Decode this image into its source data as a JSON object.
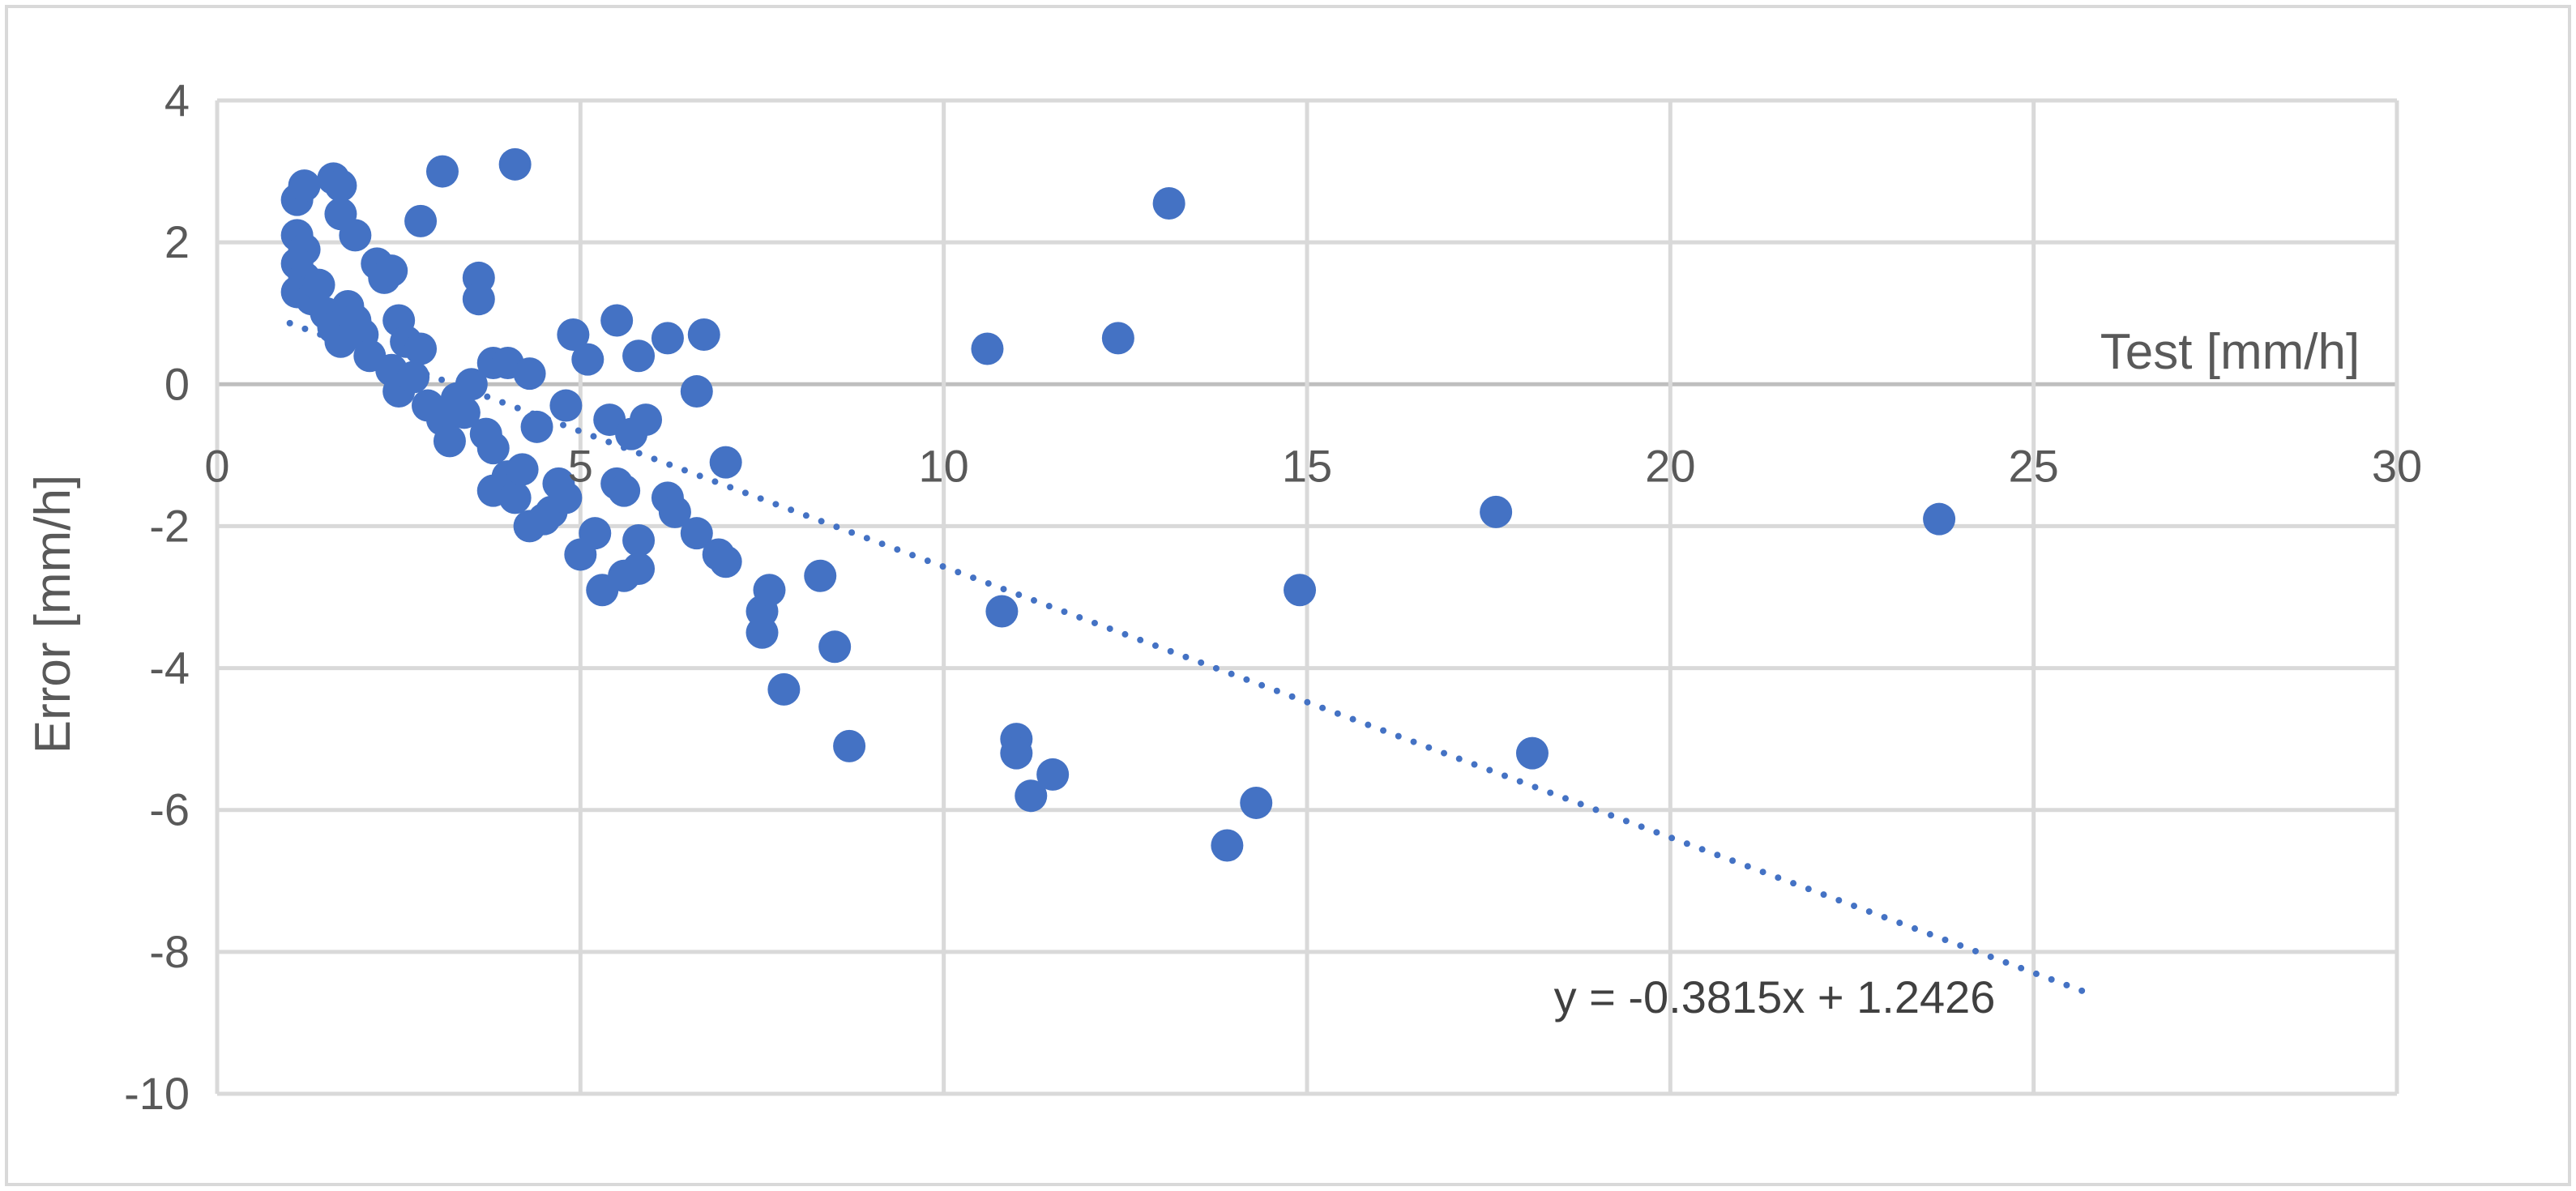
{
  "chart_data": {
    "type": "scatter",
    "xlabel": "Test [mm/h]",
    "ylabel": "Error [mm/h]",
    "xlim": [
      0,
      30
    ],
    "ylim": [
      -10,
      4
    ],
    "x_ticks": [
      0,
      5,
      10,
      15,
      20,
      25,
      30
    ],
    "y_ticks": [
      4,
      2,
      0,
      -2,
      -4,
      -6,
      -8,
      -10
    ],
    "grid": true,
    "legend": "none",
    "colors": {
      "points": "#4472c4",
      "trendline": "#4472c4",
      "grid": "#d9d9d9",
      "text": "#595959"
    },
    "trendline": {
      "equation": "y = -0.3815x + 1.2426",
      "slope": -0.3815,
      "intercept": 1.2426,
      "x_range": [
        1.0,
        25.7
      ]
    },
    "points": [
      {
        "x": 1.1,
        "y": 2.6
      },
      {
        "x": 1.2,
        "y": 2.8
      },
      {
        "x": 1.6,
        "y": 2.9
      },
      {
        "x": 1.7,
        "y": 2.8
      },
      {
        "x": 1.7,
        "y": 2.4
      },
      {
        "x": 1.9,
        "y": 2.1
      },
      {
        "x": 1.1,
        "y": 2.1
      },
      {
        "x": 1.2,
        "y": 1.9
      },
      {
        "x": 1.1,
        "y": 1.7
      },
      {
        "x": 1.2,
        "y": 1.5
      },
      {
        "x": 1.1,
        "y": 1.3
      },
      {
        "x": 1.3,
        "y": 1.2
      },
      {
        "x": 1.4,
        "y": 1.4
      },
      {
        "x": 1.5,
        "y": 1.0
      },
      {
        "x": 1.6,
        "y": 0.8
      },
      {
        "x": 1.7,
        "y": 0.6
      },
      {
        "x": 1.8,
        "y": 1.1
      },
      {
        "x": 1.9,
        "y": 0.9
      },
      {
        "x": 2.0,
        "y": 0.7
      },
      {
        "x": 2.1,
        "y": 0.4
      },
      {
        "x": 2.2,
        "y": 1.7
      },
      {
        "x": 2.3,
        "y": 1.5
      },
      {
        "x": 2.4,
        "y": 1.6
      },
      {
        "x": 2.5,
        "y": 0.9
      },
      {
        "x": 2.6,
        "y": 0.6
      },
      {
        "x": 2.4,
        "y": 0.2
      },
      {
        "x": 2.5,
        "y": -0.1
      },
      {
        "x": 2.7,
        "y": 0.1
      },
      {
        "x": 2.8,
        "y": 0.5
      },
      {
        "x": 2.8,
        "y": 2.3
      },
      {
        "x": 3.1,
        "y": 3.0
      },
      {
        "x": 2.9,
        "y": -0.3
      },
      {
        "x": 3.1,
        "y": -0.5
      },
      {
        "x": 3.2,
        "y": -0.8
      },
      {
        "x": 3.3,
        "y": -0.2
      },
      {
        "x": 3.4,
        "y": -0.4
      },
      {
        "x": 3.5,
        "y": 0.0
      },
      {
        "x": 3.6,
        "y": 1.5
      },
      {
        "x": 3.6,
        "y": 1.2
      },
      {
        "x": 3.7,
        "y": -0.7
      },
      {
        "x": 3.8,
        "y": -0.9
      },
      {
        "x": 3.8,
        "y": 0.3
      },
      {
        "x": 4.0,
        "y": 0.3
      },
      {
        "x": 4.1,
        "y": 3.1
      },
      {
        "x": 4.3,
        "y": 0.15
      },
      {
        "x": 3.8,
        "y": -1.5
      },
      {
        "x": 4.0,
        "y": -1.3
      },
      {
        "x": 4.1,
        "y": -1.6
      },
      {
        "x": 4.2,
        "y": -1.2
      },
      {
        "x": 4.3,
        "y": -2.0
      },
      {
        "x": 4.4,
        "y": -0.6
      },
      {
        "x": 4.5,
        "y": -1.9
      },
      {
        "x": 4.6,
        "y": -1.8
      },
      {
        "x": 4.7,
        "y": -1.4
      },
      {
        "x": 4.8,
        "y": -1.6
      },
      {
        "x": 4.8,
        "y": -0.3
      },
      {
        "x": 4.9,
        "y": 0.7
      },
      {
        "x": 5.1,
        "y": 0.35
      },
      {
        "x": 5.0,
        "y": -2.4
      },
      {
        "x": 5.2,
        "y": -2.1
      },
      {
        "x": 5.3,
        "y": -2.9
      },
      {
        "x": 5.4,
        "y": -0.5
      },
      {
        "x": 5.5,
        "y": 0.9
      },
      {
        "x": 5.5,
        "y": -1.4
      },
      {
        "x": 5.6,
        "y": -1.5
      },
      {
        "x": 5.6,
        "y": -2.7
      },
      {
        "x": 5.7,
        "y": -0.7
      },
      {
        "x": 5.8,
        "y": 0.4
      },
      {
        "x": 5.8,
        "y": -2.2
      },
      {
        "x": 5.8,
        "y": -2.6
      },
      {
        "x": 5.9,
        "y": -0.5
      },
      {
        "x": 6.2,
        "y": 0.65
      },
      {
        "x": 6.2,
        "y": -1.6
      },
      {
        "x": 6.3,
        "y": -1.8
      },
      {
        "x": 6.6,
        "y": -0.1
      },
      {
        "x": 6.6,
        "y": -2.1
      },
      {
        "x": 6.7,
        "y": 0.7
      },
      {
        "x": 6.9,
        "y": -2.4
      },
      {
        "x": 7.0,
        "y": -2.5
      },
      {
        "x": 7.0,
        "y": -1.1
      },
      {
        "x": 7.5,
        "y": -3.2
      },
      {
        "x": 7.5,
        "y": -3.5
      },
      {
        "x": 7.6,
        "y": -2.9
      },
      {
        "x": 7.8,
        "y": -4.3
      },
      {
        "x": 8.3,
        "y": -2.7
      },
      {
        "x": 8.5,
        "y": -3.7
      },
      {
        "x": 8.7,
        "y": -5.1
      },
      {
        "x": 10.6,
        "y": 0.5
      },
      {
        "x": 10.8,
        "y": -3.2
      },
      {
        "x": 11.0,
        "y": -5.0
      },
      {
        "x": 11.0,
        "y": -5.2
      },
      {
        "x": 11.2,
        "y": -5.8
      },
      {
        "x": 11.5,
        "y": -5.5
      },
      {
        "x": 12.4,
        "y": 0.65
      },
      {
        "x": 13.1,
        "y": 2.55
      },
      {
        "x": 13.9,
        "y": -6.5
      },
      {
        "x": 14.3,
        "y": -5.9
      },
      {
        "x": 14.9,
        "y": -2.9
      },
      {
        "x": 17.6,
        "y": -1.8
      },
      {
        "x": 18.1,
        "y": -5.2
      },
      {
        "x": 23.7,
        "y": -1.9
      }
    ]
  }
}
